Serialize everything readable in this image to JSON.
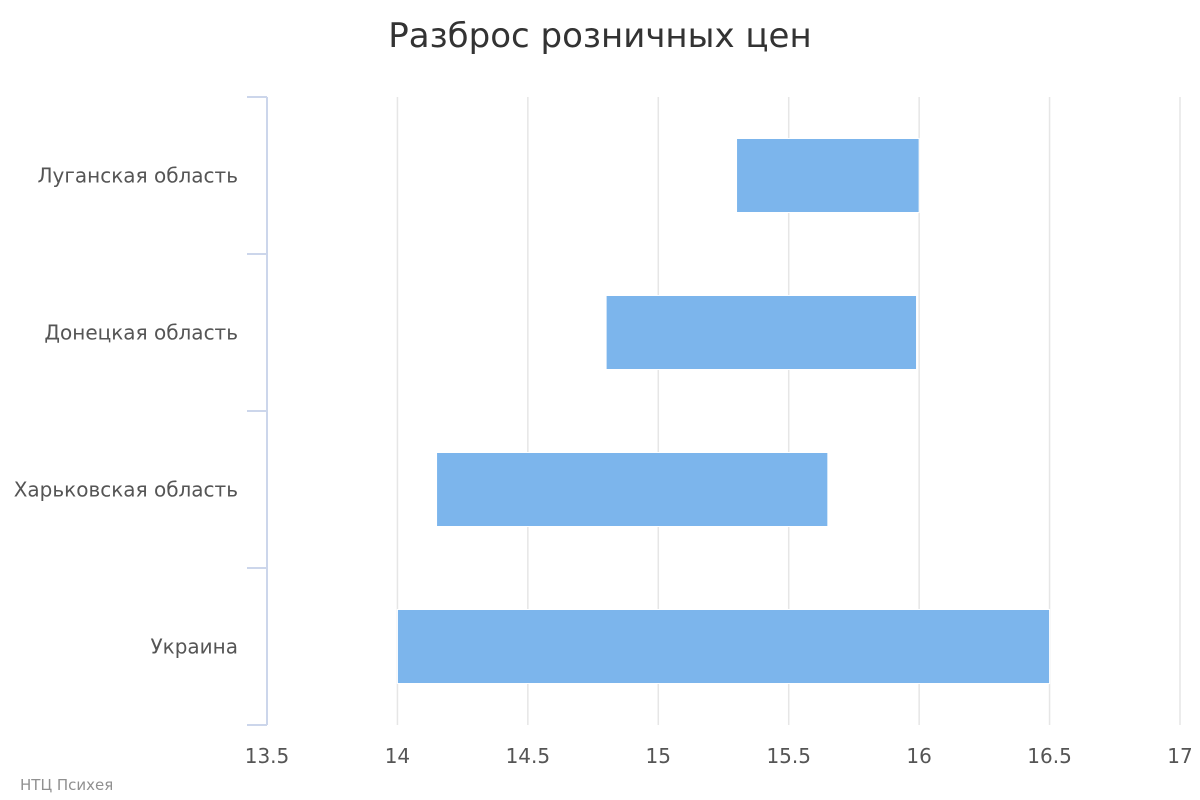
{
  "chart_data": {
    "type": "bar",
    "orientation": "horizontal",
    "subtype": "floating-range",
    "title": "Разброс розничных цен",
    "xlabel": "",
    "ylabel": "",
    "categories": [
      "Луганская область",
      "Донецкая область",
      "Харьковская область",
      "Украина"
    ],
    "ranges": [
      {
        "low": 15.3,
        "high": 16.0
      },
      {
        "low": 14.8,
        "high": 15.99
      },
      {
        "low": 14.15,
        "high": 15.65
      },
      {
        "low": 14.0,
        "high": 16.5
      }
    ],
    "xlim": [
      13.5,
      17
    ],
    "xticks": [
      "13.5",
      "14",
      "14.5",
      "15",
      "15.5",
      "16",
      "16.5",
      "17"
    ],
    "grid": true,
    "legend": "none",
    "bar_color": "#7cb5ec"
  },
  "credit": "НТЦ Психея"
}
